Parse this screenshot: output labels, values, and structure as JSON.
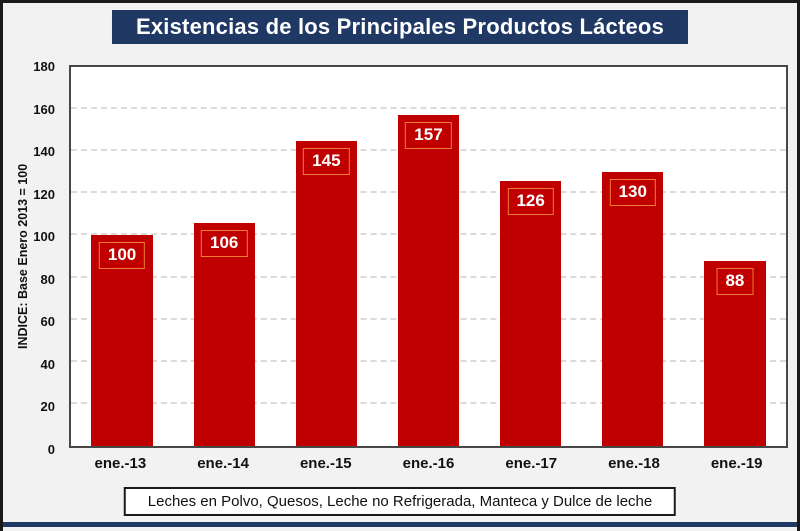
{
  "title": "Existencias de los Principales Productos Lácteos",
  "footer": "Leches en Polvo, Quesos, Leche no Refrigerada, Manteca y Dulce de leche",
  "chart_data": {
    "type": "bar",
    "title": "Existencias de los Principales Productos Lácteos",
    "categories": [
      "ene.-13",
      "ene.-14",
      "ene.-15",
      "ene.-16",
      "ene.-17",
      "ene.-18",
      "ene.-19"
    ],
    "values": [
      100,
      106,
      145,
      157,
      126,
      130,
      88
    ],
    "xlabel": "",
    "ylabel": "INDICE: Base Enero 2013 = 100",
    "ylim": [
      0,
      180
    ],
    "ytick_step": 20,
    "grid": "horizontal-dashed",
    "legend_position": "none",
    "data_labels": "inside-top-boxed",
    "annotation": "Leches en Polvo, Quesos, Leche no Refrigerada, Manteca y Dulce de leche"
  },
  "colors": {
    "background": "#F2F2F2",
    "frame_border": "#1A1A1A",
    "title_bg": "#1F3864",
    "title_text": "#FFFFFF",
    "plot_bg": "#FFFFFF",
    "plot_border": "#474747",
    "gridline": "#DBDBDB",
    "bar_fill": "#C00000",
    "bar_label_text": "#FFFFFF",
    "bar_label_border": "#ED7D31",
    "bottom_strip": "#1F3864"
  }
}
